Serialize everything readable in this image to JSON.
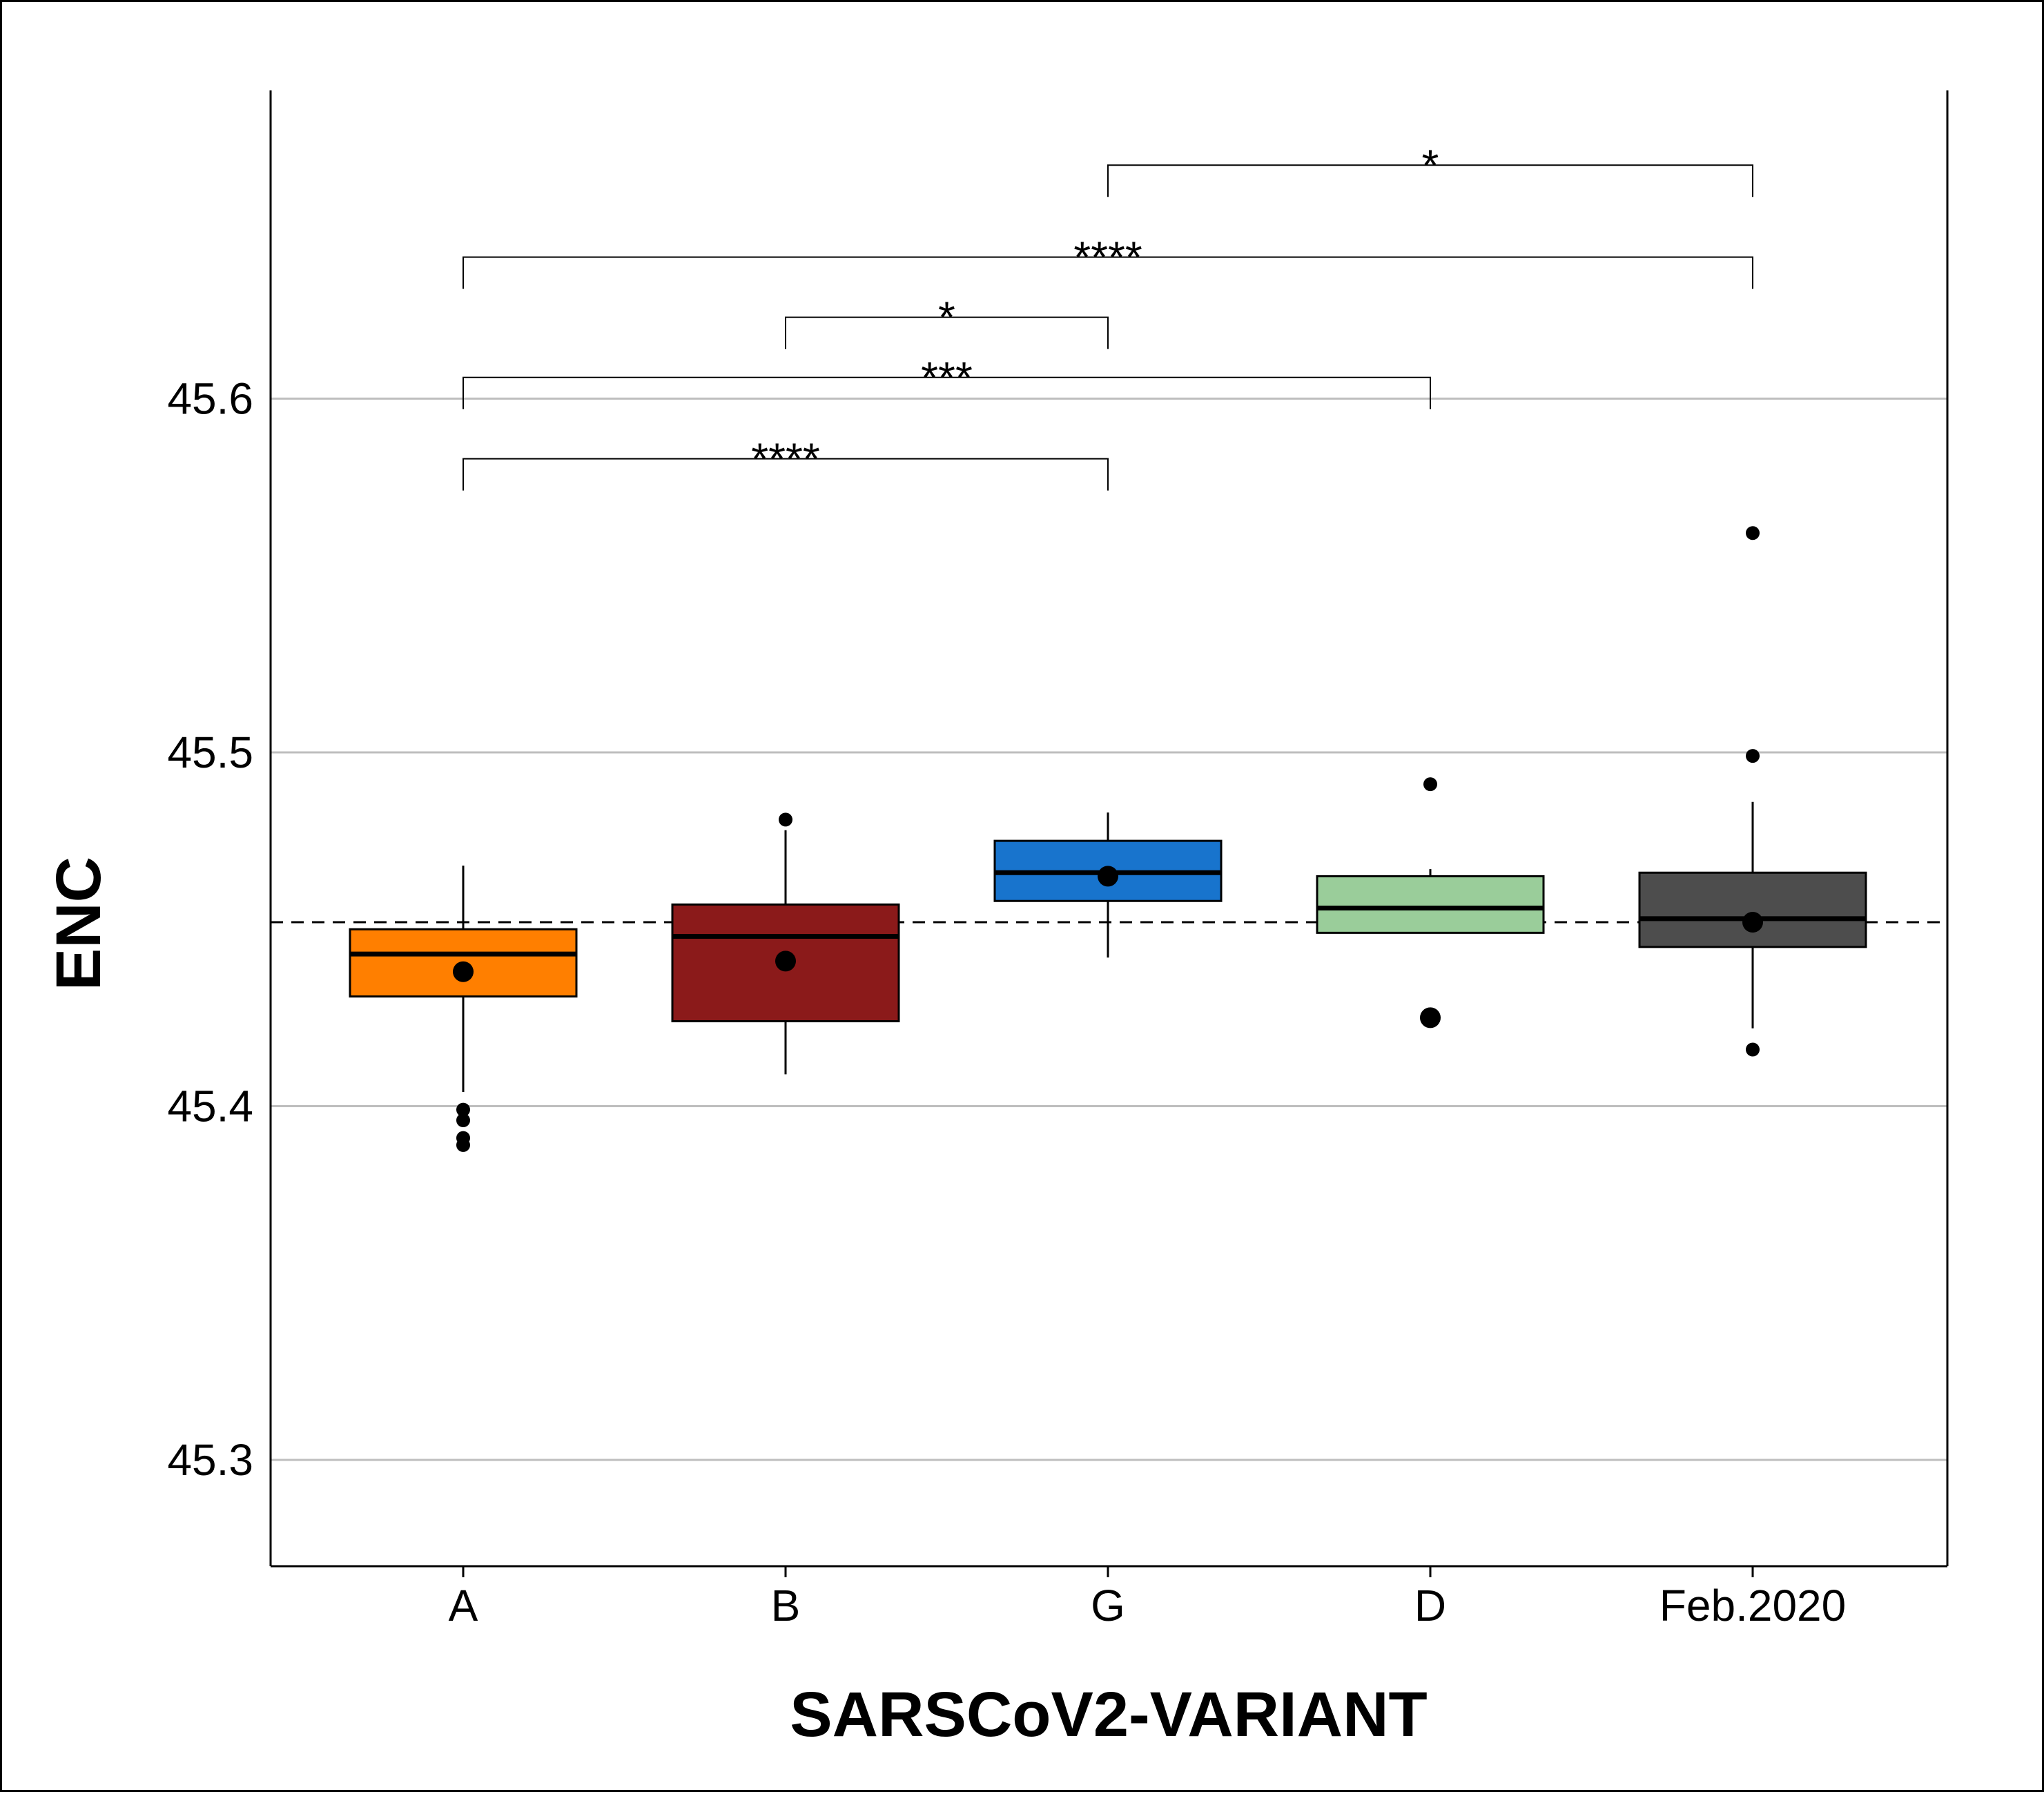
{
  "chart_data": {
    "type": "boxplot",
    "xlabel": "SARSCoV2-VARIANT",
    "ylabel": "ENC",
    "ylim": [
      45.27,
      45.685
    ],
    "yticks": [
      45.3,
      45.4,
      45.5,
      45.6
    ],
    "ytick_labels": [
      "45.3",
      "45.4",
      "45.5",
      "45.6"
    ],
    "grid": "horizontal",
    "reference_line": {
      "y": 45.452,
      "style": "dashed"
    },
    "categories": [
      "A",
      "B",
      "G",
      "D",
      "Feb.2020"
    ],
    "boxes": [
      {
        "category": "A",
        "color": "#FF7F00",
        "whisker_low": 45.404,
        "q1": 45.431,
        "median": 45.443,
        "q3": 45.45,
        "whisker_high": 45.468,
        "mean": 45.438,
        "outliers": [
          45.399,
          45.396,
          45.391,
          45.389
        ]
      },
      {
        "category": "B",
        "color": "#8B1A1A",
        "whisker_low": 45.409,
        "q1": 45.424,
        "median": 45.448,
        "q3": 45.457,
        "whisker_high": 45.478,
        "mean": 45.441,
        "outliers": [
          45.481
        ]
      },
      {
        "category": "G",
        "color": "#1874CD",
        "whisker_low": 45.442,
        "q1": 45.458,
        "median": 45.466,
        "q3": 45.475,
        "whisker_high": 45.483,
        "mean": 45.465,
        "outliers": []
      },
      {
        "category": "D",
        "color": "#9ACD9A",
        "whisker_low": 45.449,
        "q1": 45.449,
        "median": 45.456,
        "q3": 45.465,
        "whisker_high": 45.467,
        "mean": 45.425,
        "outliers": [
          45.491
        ]
      },
      {
        "category": "Feb.2020",
        "color": "#4D4D4D",
        "whisker_low": 45.422,
        "q1": 45.445,
        "median": 45.453,
        "q3": 45.466,
        "whisker_high": 45.486,
        "mean": 45.452,
        "outliers": [
          45.562,
          45.499,
          45.416
        ]
      }
    ],
    "comparisons": [
      {
        "from": "A",
        "to": "G",
        "label": "****",
        "bracket_y": 45.583
      },
      {
        "from": "A",
        "to": "D",
        "label": "***",
        "bracket_y": 45.606
      },
      {
        "from": "B",
        "to": "G",
        "label": "*",
        "bracket_y": 45.623
      },
      {
        "from": "A",
        "to": "Feb.2020",
        "label": "****",
        "bracket_y": 45.64
      },
      {
        "from": "G",
        "to": "Feb.2020",
        "label": "*",
        "bracket_y": 45.666
      }
    ]
  }
}
